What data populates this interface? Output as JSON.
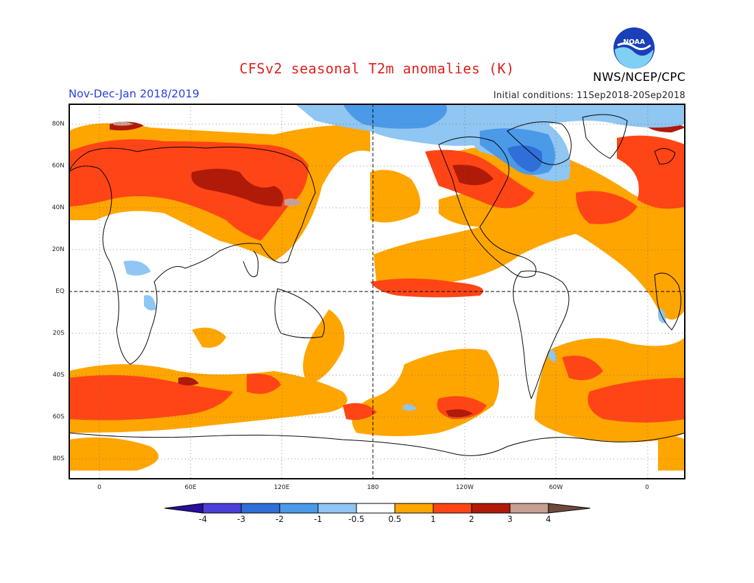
{
  "header": {
    "title": "CFSv2 seasonal T2m anomalies (K)",
    "period": "Nov-Dec-Jan 2018/2019",
    "agency": "NWS/NCEP/CPC",
    "initial_conditions": "Initial conditions: 11Sep2018-20Sep2018",
    "logo_text": "NOAA"
  },
  "axes": {
    "lat_labels": [
      "80N",
      "60N",
      "40N",
      "20N",
      "EQ",
      "20S",
      "40S",
      "60S",
      "80S"
    ],
    "lon_labels": [
      "0",
      "60E",
      "120E",
      "180",
      "120W",
      "60W",
      "0"
    ]
  },
  "colorbar": {
    "labels": [
      "-4",
      "-3",
      "-2",
      "-1",
      "-0.5",
      "0.5",
      "1",
      "2",
      "3",
      "4"
    ],
    "colors": [
      "#2a0d9a",
      "#4a3fd6",
      "#2f6fd8",
      "#4a9ae8",
      "#8fc6f2",
      "#ffffff",
      "#ffa500",
      "#ff4516",
      "#b01a08",
      "#c7a093",
      "#6e4a3e"
    ]
  },
  "colors": {
    "title": "#e0201c",
    "period": "#2a3fe0",
    "warm_1": "#ffa500",
    "warm_2": "#ff4516",
    "warm_3": "#b01a08",
    "warm_4": "#c7a093",
    "cool_1": "#8fc6f2",
    "cool_2": "#4a9ae8",
    "cool_3": "#2f6fd8"
  }
}
